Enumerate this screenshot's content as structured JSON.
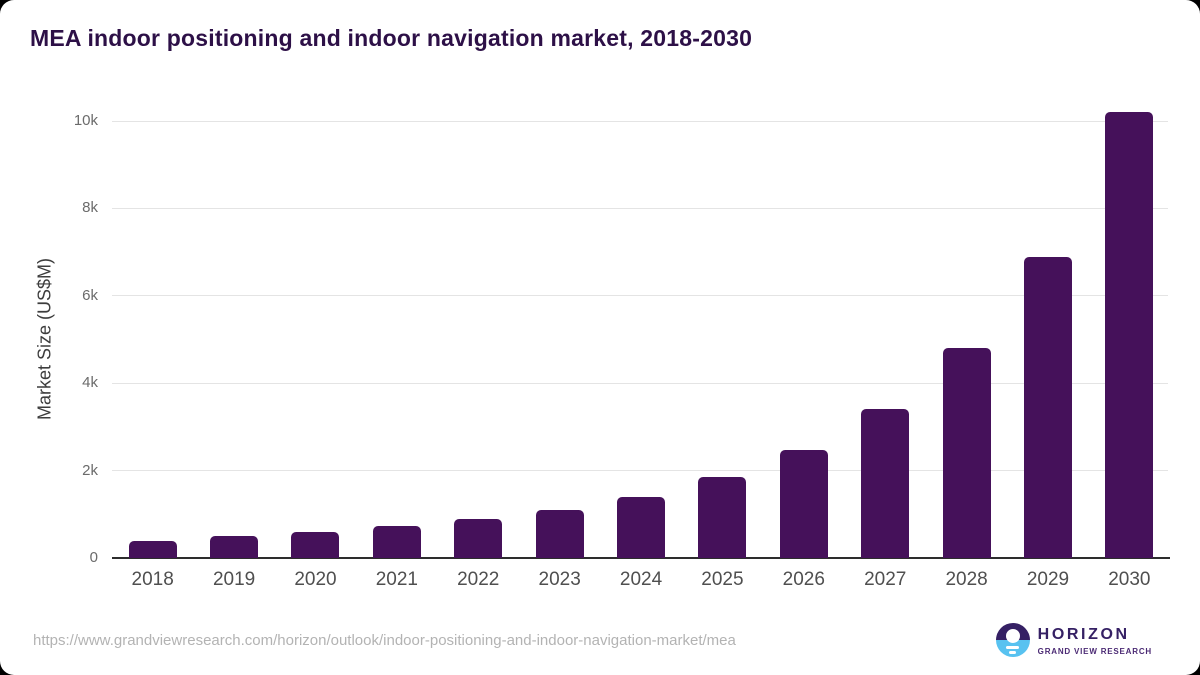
{
  "title": "MEA indoor positioning and indoor navigation market, 2018-2030",
  "chart_data": {
    "type": "bar",
    "title": "MEA indoor positioning and indoor navigation market, 2018-2030",
    "categories": [
      "2018",
      "2019",
      "2020",
      "2021",
      "2022",
      "2023",
      "2024",
      "2025",
      "2026",
      "2027",
      "2028",
      "2029",
      "2030"
    ],
    "values": [
      400,
      500,
      590,
      730,
      890,
      1100,
      1400,
      1850,
      2480,
      3400,
      4800,
      6900,
      10200
    ],
    "xlabel": "",
    "ylabel": "Market Size (US$M)",
    "ylim": [
      0,
      10000
    ],
    "yticks": [
      {
        "value": 0,
        "label": "0"
      },
      {
        "value": 2000,
        "label": "2k"
      },
      {
        "value": 4000,
        "label": "4k"
      },
      {
        "value": 6000,
        "label": "6k"
      },
      {
        "value": 8000,
        "label": "8k"
      },
      {
        "value": 10000,
        "label": "10k"
      }
    ],
    "grid": true,
    "legend_position": "none",
    "bar_color": "#45115a"
  },
  "footer": {
    "source_url": "https://www.grandviewresearch.com/horizon/outlook/indoor-positioning-and-indoor-navigation-market/mea",
    "logo": {
      "name": "HORIZON",
      "subtitle": "GRAND VIEW RESEARCH"
    }
  },
  "colors": {
    "title_color": "#2d1047",
    "bar_color": "#45115a",
    "grid_color": "#e4e4e4",
    "axis_color": "#2d2d2d",
    "tick_color": "#6b6b6b",
    "xlabel_color": "#4f4f4f",
    "url_color": "#b3b3b3",
    "logo_purple": "#352064",
    "logo_blue": "#58c2f0"
  }
}
